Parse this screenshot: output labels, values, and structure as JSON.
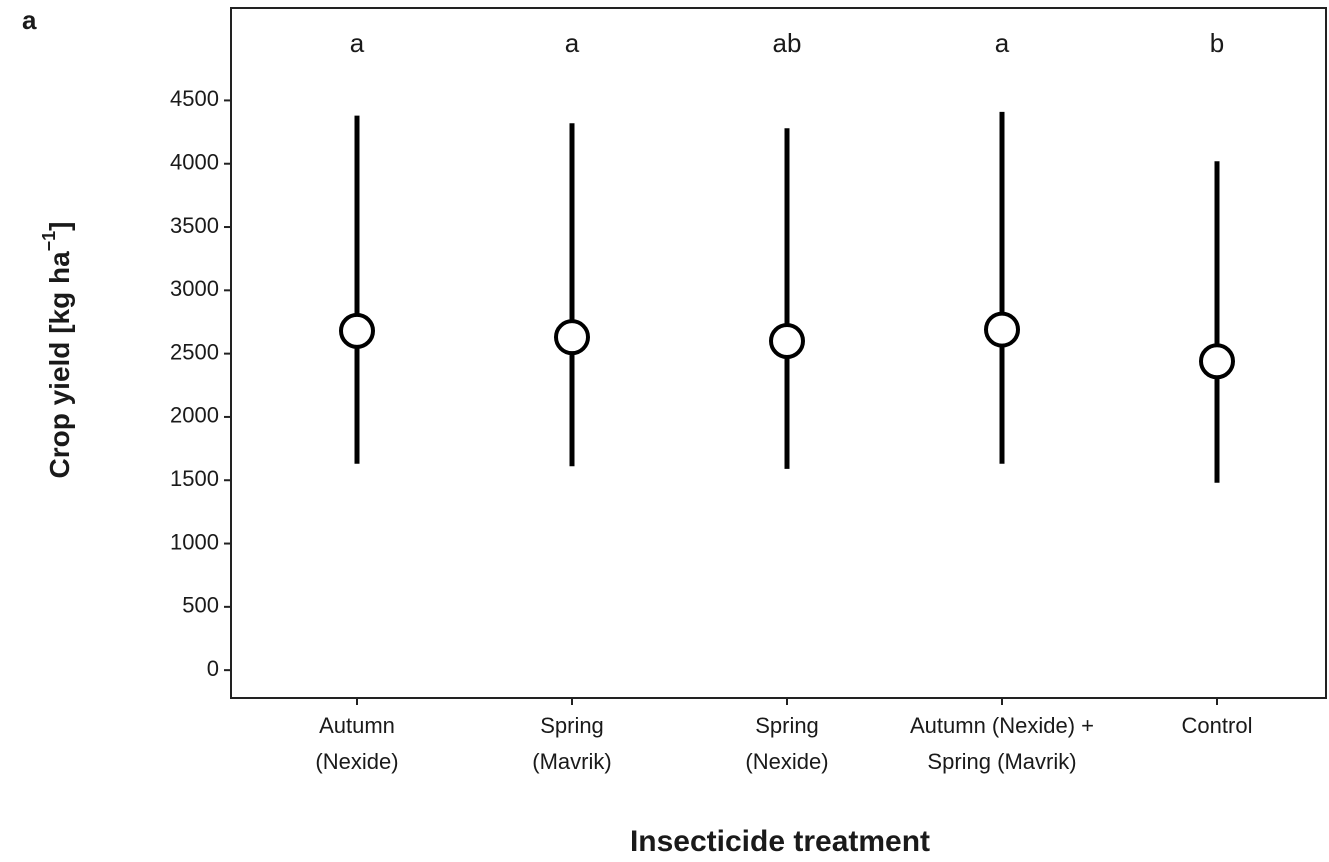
{
  "chart_data": {
    "type": "pointrange",
    "panel_label": "a",
    "xlabel": "Insecticide treatment",
    "ylabel": [
      "Crop yield [kg ha",
      "−1",
      "]"
    ],
    "categories": [
      [
        "Autumn",
        "(Nexide)"
      ],
      [
        "Spring",
        "(Mavrik)"
      ],
      [
        "Spring",
        "(Nexide)"
      ],
      [
        "Autumn (Nexide) +",
        "Spring (Mavrik)"
      ],
      [
        "Control"
      ]
    ],
    "annotations": [
      "a",
      "a",
      "ab",
      "a",
      "b"
    ],
    "series": [
      {
        "color": "#000000",
        "values": [
          2680,
          2630,
          2600,
          2690,
          2440
        ],
        "low": [
          1630,
          1610,
          1590,
          1630,
          1480
        ],
        "high": [
          4380,
          4320,
          4280,
          4410,
          4020
        ]
      }
    ],
    "ylim": [
      -220,
      5230
    ],
    "yticks": [
      0,
      500,
      1000,
      1500,
      2000,
      2500,
      3000,
      3500,
      4000,
      4500
    ],
    "grid": false
  }
}
